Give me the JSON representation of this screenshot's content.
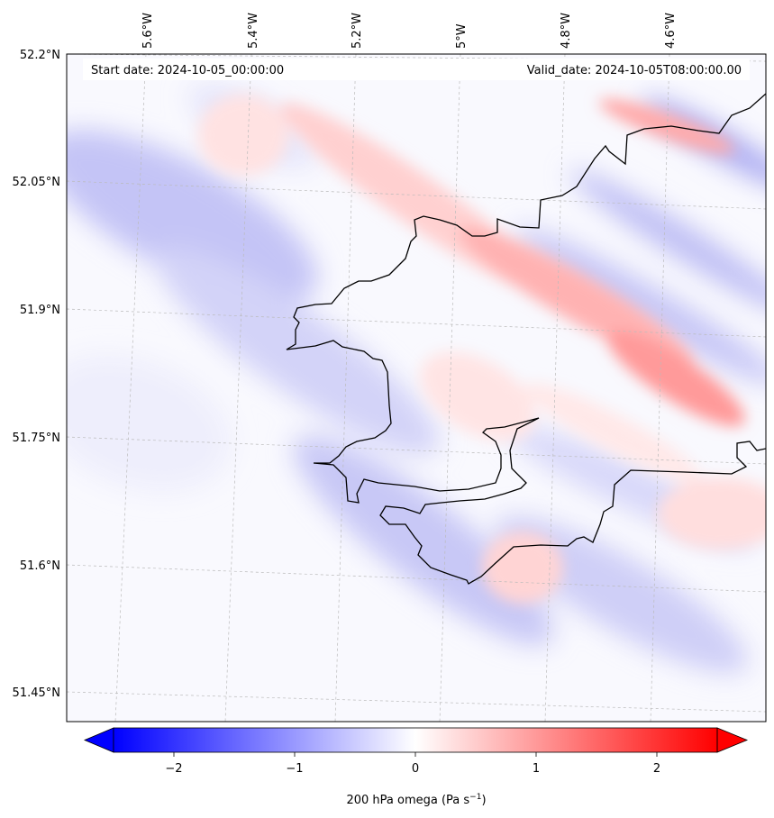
{
  "map": {
    "start_date": "Start date: 2024-10-05_00:00:00",
    "valid_date": "Valid_date: 2024-10-05T08:00:00.00",
    "lon_labels": [
      "5.6°W",
      "5.4°W",
      "5.2°W",
      "5°W",
      "4.8°W",
      "4.6°W"
    ],
    "lat_labels": [
      "52.2°N",
      "52.05°N",
      "51.9°N",
      "51.75°N",
      "51.6°N",
      "51.45°N"
    ]
  },
  "colorbar": {
    "ticks": [
      "−2",
      "−1",
      "0",
      "1",
      "2"
    ],
    "tick_values": [
      -2,
      -1,
      0,
      1,
      2
    ],
    "vmin": -2.5,
    "vmax": 2.5,
    "label_main": "200 hPa omega (Pa s",
    "label_sup": "−1",
    "label_close": ")",
    "cmap": "bwr",
    "low_color": "#0000ff",
    "mid_color": "#ffffff",
    "high_color": "#ff0000"
  }
}
